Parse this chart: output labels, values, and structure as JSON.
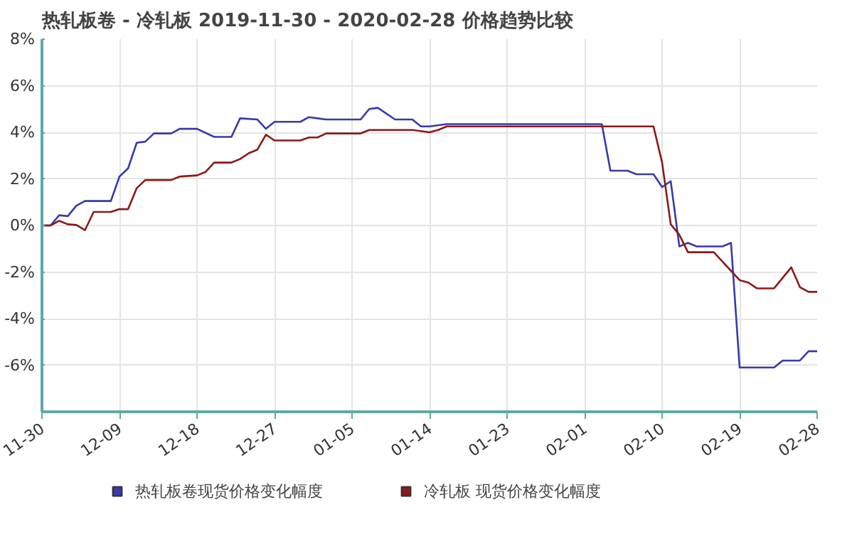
{
  "chart_data": {
    "type": "line",
    "title": "热轧板卷 - 冷轧板 2019-11-30 - 2020-02-28 价格趋势比较",
    "xlim": [
      "2019-11-30",
      "2020-02-28"
    ],
    "xticks": [
      {
        "value": "2019-11-30",
        "label": "11-30"
      },
      {
        "value": "2019-12-09",
        "label": "12-09"
      },
      {
        "value": "2019-12-18",
        "label": "12-18"
      },
      {
        "value": "2019-12-27",
        "label": "12-27"
      },
      {
        "value": "2020-01-05",
        "label": "01-05"
      },
      {
        "value": "2020-01-14",
        "label": "01-14"
      },
      {
        "value": "2020-01-23",
        "label": "01-23"
      },
      {
        "value": "2020-02-01",
        "label": "02-01"
      },
      {
        "value": "2020-02-10",
        "label": "02-10"
      },
      {
        "value": "2020-02-19",
        "label": "02-19"
      },
      {
        "value": "2020-02-28",
        "label": "02-28"
      }
    ],
    "ylim": [
      -8,
      8
    ],
    "yticks": [
      {
        "value": -8,
        "label": null
      },
      {
        "value": -6,
        "label": "-6%"
      },
      {
        "value": -4,
        "label": "-4%"
      },
      {
        "value": -2,
        "label": "-2%"
      },
      {
        "value": 0,
        "label": "0%"
      },
      {
        "value": 2,
        "label": "2%"
      },
      {
        "value": 4,
        "label": "4%"
      },
      {
        "value": 6,
        "label": "6%"
      },
      {
        "value": 8,
        "label": "8%"
      }
    ],
    "grid": true,
    "legend": "bottom",
    "marker": "none",
    "line_style": "solid",
    "series": [
      {
        "name": "热轧板卷现货价格变化幅度",
        "color": "#3a3aa8",
        "x": [
          "2019-11-30",
          "2019-12-01",
          "2019-12-02",
          "2019-12-03",
          "2019-12-04",
          "2019-12-05",
          "2019-12-08",
          "2019-12-09",
          "2019-12-10",
          "2019-12-11",
          "2019-12-12",
          "2019-12-13",
          "2019-12-15",
          "2019-12-16",
          "2019-12-18",
          "2019-12-20",
          "2019-12-22",
          "2019-12-23",
          "2019-12-25",
          "2019-12-26",
          "2019-12-27",
          "2019-12-30",
          "2019-12-31",
          "2020-01-01",
          "2020-01-02",
          "2020-01-06",
          "2020-01-07",
          "2020-01-08",
          "2020-01-10",
          "2020-01-12",
          "2020-01-13",
          "2020-01-14",
          "2020-01-16",
          "2020-02-03",
          "2020-02-04",
          "2020-02-06",
          "2020-02-07",
          "2020-02-09",
          "2020-02-10",
          "2020-02-11",
          "2020-02-12",
          "2020-02-13",
          "2020-02-14",
          "2020-02-17",
          "2020-02-18",
          "2020-02-19",
          "2020-02-23",
          "2020-02-24",
          "2020-02-26",
          "2020-02-27",
          "2020-02-28"
        ],
        "values": [
          0,
          0,
          0.44,
          0.4,
          0.85,
          1.05,
          1.05,
          2.1,
          2.45,
          3.55,
          3.6,
          3.95,
          3.95,
          4.15,
          4.15,
          3.8,
          3.8,
          4.6,
          4.55,
          4.15,
          4.45,
          4.45,
          4.65,
          4.6,
          4.55,
          4.55,
          5.0,
          5.05,
          4.55,
          4.55,
          4.25,
          4.25,
          4.35,
          4.35,
          2.35,
          2.35,
          2.2,
          2.2,
          1.65,
          1.9,
          -0.9,
          -0.75,
          -0.9,
          -0.9,
          -0.75,
          -6.1,
          -6.1,
          -5.8,
          -5.8,
          -5.4,
          -5.4
        ]
      },
      {
        "name": "冷轧板 现货价格变化幅度",
        "color": "#8b1a1a",
        "x": [
          "2019-11-30",
          "2019-12-01",
          "2019-12-02",
          "2019-12-03",
          "2019-12-04",
          "2019-12-05",
          "2019-12-06",
          "2019-12-08",
          "2019-12-09",
          "2019-12-10",
          "2019-12-11",
          "2019-12-12",
          "2019-12-15",
          "2019-12-16",
          "2019-12-18",
          "2019-12-19",
          "2019-12-20",
          "2019-12-22",
          "2019-12-23",
          "2019-12-24",
          "2019-12-25",
          "2019-12-26",
          "2019-12-27",
          "2019-12-30",
          "2019-12-31",
          "2020-01-01",
          "2020-01-02",
          "2020-01-06",
          "2020-01-07",
          "2020-01-12",
          "2020-01-14",
          "2020-01-15",
          "2020-01-16",
          "2020-02-09",
          "2020-02-10",
          "2020-02-11",
          "2020-02-12",
          "2020-02-13",
          "2020-02-16",
          "2020-02-19",
          "2020-02-20",
          "2020-02-21",
          "2020-02-23",
          "2020-02-25",
          "2020-02-26",
          "2020-02-27",
          "2020-02-28"
        ],
        "values": [
          0,
          0,
          0.2,
          0.05,
          0.02,
          -0.2,
          0.58,
          0.58,
          0.7,
          0.7,
          1.6,
          1.95,
          1.95,
          2.1,
          2.15,
          2.3,
          2.7,
          2.7,
          2.85,
          3.1,
          3.25,
          3.9,
          3.65,
          3.65,
          3.78,
          3.78,
          3.95,
          3.95,
          4.1,
          4.1,
          4.0,
          4.1,
          4.25,
          4.25,
          2.7,
          0.05,
          -0.4,
          -1.15,
          -1.15,
          -2.35,
          -2.45,
          -2.7,
          -2.7,
          -1.8,
          -2.65,
          -2.85,
          -2.85
        ]
      }
    ]
  }
}
